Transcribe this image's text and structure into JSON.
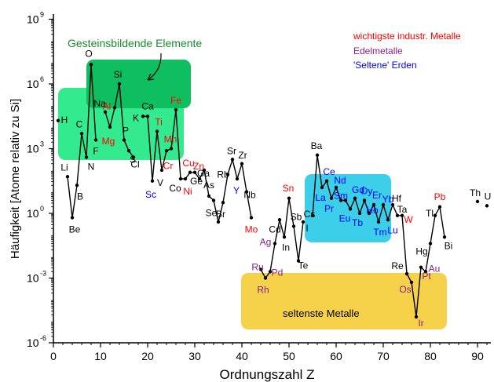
{
  "chart_data": {
    "type": "line",
    "title": "",
    "xlabel": "Ordnungszahl Z",
    "ylabel": "Häufigkeit [Atome relativ zu Si]",
    "xlim": [
      0,
      93
    ],
    "ylog_exponent_range": [
      -6,
      9
    ],
    "x_ticks": [
      "0",
      "10",
      "20",
      "30",
      "40",
      "50",
      "60",
      "70",
      "80",
      "90"
    ],
    "y_ticks": [
      {
        "base": "10",
        "exp": "-6",
        "e": -6
      },
      {
        "base": "10",
        "exp": "-3",
        "e": -3
      },
      {
        "base": "10",
        "exp": "0",
        "e": 0
      },
      {
        "base": "10",
        "exp": "3",
        "e": 3
      },
      {
        "base": "10",
        "exp": "6",
        "e": 6
      },
      {
        "base": "10",
        "exp": "9",
        "e": 9
      }
    ],
    "series": [
      {
        "values_log10": [
          [
            1,
            4.3
          ],
          [
            3,
            1.7
          ],
          [
            4,
            -0.2
          ],
          [
            5,
            1.3
          ],
          [
            6,
            3.7
          ],
          [
            7,
            2.6
          ],
          [
            8,
            6.9
          ],
          [
            9,
            3.4
          ],
          [
            11,
            4.7
          ],
          [
            12,
            4.0
          ],
          [
            13,
            4.9
          ],
          [
            14,
            6.0
          ],
          [
            15,
            3.4
          ],
          [
            16,
            2.9
          ],
          [
            17,
            2.6
          ],
          [
            19,
            4.5
          ],
          [
            20,
            4.5
          ],
          [
            21,
            1.5
          ],
          [
            22,
            3.8
          ],
          [
            23,
            2.0
          ],
          [
            24,
            2.9
          ],
          [
            25,
            3.0
          ],
          [
            26,
            4.8
          ],
          [
            27,
            1.6
          ],
          [
            28,
            1.6
          ],
          [
            29,
            1.9
          ],
          [
            30,
            1.9
          ],
          [
            31,
            1.6
          ],
          [
            32,
            2.0
          ],
          [
            33,
            0.8
          ],
          [
            34,
            0.6
          ],
          [
            35,
            -0.4
          ],
          [
            36,
            0.5
          ],
          [
            37,
            1.8
          ],
          [
            38,
            2.5
          ],
          [
            39,
            1.6
          ],
          [
            40,
            2.3
          ],
          [
            41,
            1.0
          ],
          [
            42,
            -0.2
          ],
          [
            44,
            -2.6
          ],
          [
            45,
            -3.0
          ],
          [
            46,
            -2.7
          ],
          [
            47,
            -1.4
          ],
          [
            48,
            -0.3
          ],
          [
            49,
            -1.1
          ],
          [
            50,
            0.7
          ],
          [
            51,
            -0.6
          ],
          [
            52,
            -2.2
          ],
          [
            53,
            -0.4
          ],
          [
            55,
            -0.1
          ],
          [
            56,
            2.7
          ],
          [
            57,
            1.2
          ],
          [
            58,
            1.5
          ],
          [
            59,
            0.7
          ],
          [
            60,
            1.2
          ],
          [
            61,
            0.6
          ],
          [
            62,
            0.6
          ],
          [
            63,
            0.2
          ],
          [
            64,
            0.7
          ],
          [
            65,
            0.0
          ],
          [
            66,
            0.6
          ],
          [
            67,
            0.0
          ],
          [
            68,
            0.4
          ],
          [
            69,
            -0.4
          ],
          [
            70,
            0.4
          ],
          [
            71,
            -0.3
          ],
          [
            72,
            0.4
          ],
          [
            73,
            -0.1
          ],
          [
            74,
            -0.1
          ],
          [
            75,
            -2.8
          ],
          [
            76,
            -3.2
          ],
          [
            77,
            -4.8
          ],
          [
            78,
            -2.5
          ],
          [
            79,
            -2.7
          ],
          [
            80,
            -1.4
          ],
          [
            81,
            -0.1
          ],
          [
            82,
            0.3
          ],
          [
            83,
            -1.1
          ]
        ]
      }
    ],
    "isolated_points_log10": [
      [
        90,
        0.55
      ],
      [
        92,
        0.35
      ]
    ],
    "element_labels": [
      {
        "s": "H",
        "z": 1,
        "dx": 8,
        "dy": -1,
        "c": "black"
      },
      {
        "s": "Li",
        "z": 3,
        "dx": -4,
        "dy": -12,
        "c": "black"
      },
      {
        "s": "Be",
        "z": 4,
        "dx": 3,
        "dy": 15,
        "c": "black"
      },
      {
        "s": "B",
        "z": 5,
        "dx": 4,
        "dy": 14,
        "c": "black"
      },
      {
        "s": "C",
        "z": 6,
        "dx": -3,
        "dy": -12,
        "c": "black"
      },
      {
        "s": "N",
        "z": 7,
        "dx": 6,
        "dy": 12,
        "c": "black"
      },
      {
        "s": "O",
        "z": 8,
        "dx": -3,
        "dy": -14,
        "c": "black"
      },
      {
        "s": "F",
        "z": 9,
        "dx": 0,
        "dy": 14,
        "c": "black"
      },
      {
        "s": "Na",
        "z": 11,
        "dx": -7,
        "dy": -11,
        "c": "black"
      },
      {
        "s": "Mg",
        "z": 12,
        "dx": -2,
        "dy": 18,
        "c": "red"
      },
      {
        "s": "Al",
        "z": 13,
        "dx": -10,
        "dy": -2,
        "c": "red"
      },
      {
        "s": "Si",
        "z": 14,
        "dx": -2,
        "dy": -12,
        "c": "black"
      },
      {
        "s": "P",
        "z": 15,
        "dx": 2,
        "dy": -12,
        "c": "black"
      },
      {
        "s": "S",
        "z": 16,
        "dx": 5,
        "dy": 11,
        "c": "black"
      },
      {
        "s": "Cl",
        "z": 17,
        "dx": 2,
        "dy": 9,
        "c": "black"
      },
      {
        "s": "K",
        "z": 19,
        "dx": -9,
        "dy": 2,
        "c": "black"
      },
      {
        "s": "Ca",
        "z": 20,
        "dx": 0,
        "dy": -13,
        "c": "black"
      },
      {
        "s": "Sc",
        "z": 21,
        "dx": -2,
        "dy": 17,
        "c": "blue"
      },
      {
        "s": "Ti",
        "z": 22,
        "dx": 2,
        "dy": -12,
        "c": "red"
      },
      {
        "s": "V",
        "z": 23,
        "dx": -2,
        "dy": 16,
        "c": "black"
      },
      {
        "s": "Cr",
        "z": 24,
        "dx": 2,
        "dy": 19,
        "c": "red"
      },
      {
        "s": "Mn",
        "z": 25,
        "dx": -1,
        "dy": -12,
        "c": "red"
      },
      {
        "s": "Fe",
        "z": 26,
        "dx": 0,
        "dy": -12,
        "c": "red"
      },
      {
        "s": "Co",
        "z": 27,
        "dx": -7,
        "dy": 12,
        "c": "black"
      },
      {
        "s": "Ni",
        "z": 28,
        "dx": 3,
        "dy": 16,
        "c": "red"
      },
      {
        "s": "Cu",
        "z": 29,
        "dx": -2,
        "dy": -12,
        "c": "red"
      },
      {
        "s": "Zn",
        "z": 30,
        "dx": 5,
        "dy": -8,
        "c": "red"
      },
      {
        "s": "Ga",
        "z": 31,
        "dx": 5,
        "dy": -7,
        "c": "black"
      },
      {
        "s": "Ge",
        "z": 32,
        "dx": -10,
        "dy": 14,
        "c": "black"
      },
      {
        "s": "As",
        "z": 33,
        "dx": 0,
        "dy": -14,
        "c": "black"
      },
      {
        "s": "Se",
        "z": 34,
        "dx": -3,
        "dy": 16,
        "c": "black"
      },
      {
        "s": "Br",
        "z": 35,
        "dx": 3,
        "dy": -10,
        "c": "black"
      },
      {
        "s": "Rb",
        "z": 37,
        "dx": -6,
        "dy": 0,
        "c": "black"
      },
      {
        "s": "Sr",
        "z": 38,
        "dx": -1,
        "dy": -11,
        "c": "black"
      },
      {
        "s": "Y",
        "z": 39,
        "dx": -1,
        "dy": 15,
        "c": "blue"
      },
      {
        "s": "Zr",
        "z": 40,
        "dx": 1,
        "dy": -11,
        "c": "black"
      },
      {
        "s": "Nb",
        "z": 41,
        "dx": 4,
        "dy": 4,
        "c": "black"
      },
      {
        "s": "Mo",
        "z": 42,
        "dx": 0,
        "dy": 15,
        "c": "red"
      },
      {
        "s": "Ru",
        "z": 44,
        "dx": -4,
        "dy": -3,
        "c": "#8b1d8b"
      },
      {
        "s": "Rh",
        "z": 45,
        "dx": -3,
        "dy": 15,
        "c": "#8b1d8b"
      },
      {
        "s": "Pd",
        "z": 46,
        "dx": 9,
        "dy": 1,
        "c": "#8b1d8b"
      },
      {
        "s": "Ag",
        "z": 47,
        "dx": -12,
        "dy": -2,
        "c": "#8b1d8b"
      },
      {
        "s": "Cd",
        "z": 48,
        "dx": -6,
        "dy": 12,
        "c": "black"
      },
      {
        "s": "In",
        "z": 49,
        "dx": 2,
        "dy": 13,
        "c": "black"
      },
      {
        "s": "Sn",
        "z": 50,
        "dx": -1,
        "dy": -13,
        "c": "red"
      },
      {
        "s": "Sb",
        "z": 51,
        "dx": 3,
        "dy": -12,
        "c": "black"
      },
      {
        "s": "Te",
        "z": 52,
        "dx": 6,
        "dy": 6,
        "c": "black"
      },
      {
        "s": "I",
        "z": 53,
        "dx": 5,
        "dy": 8,
        "c": "black"
      },
      {
        "s": "Cs",
        "z": 55,
        "dx": -4,
        "dy": -2,
        "c": "black"
      },
      {
        "s": "Ba",
        "z": 56,
        "dx": -1,
        "dy": -12,
        "c": "black"
      },
      {
        "s": "La",
        "z": 57,
        "dx": -2,
        "dy": 13,
        "c": "blue"
      },
      {
        "s": "Ce",
        "z": 58,
        "dx": 3,
        "dy": -12,
        "c": "blue"
      },
      {
        "s": "Pr",
        "z": 59,
        "dx": -3,
        "dy": 13,
        "c": "blue"
      },
      {
        "s": "Nd",
        "z": 60,
        "dx": 5,
        "dy": -9,
        "c": "blue"
      },
      {
        "s": "Sm",
        "z": 62,
        "dx": -6,
        "dy": -6,
        "c": "blue"
      },
      {
        "s": "Eu",
        "z": 63,
        "dx": -7,
        "dy": 12,
        "c": "blue"
      },
      {
        "s": "Gd",
        "z": 64,
        "dx": 4,
        "dy": -11,
        "c": "blue"
      },
      {
        "s": "Tb",
        "z": 65,
        "dx": -3,
        "dy": 12,
        "c": "blue"
      },
      {
        "s": "Dy",
        "z": 66,
        "dx": 3,
        "dy": -12,
        "c": "blue"
      },
      {
        "s": "Ho",
        "z": 67,
        "dx": 4,
        "dy": -4,
        "c": "blue"
      },
      {
        "s": "Er",
        "z": 68,
        "dx": 4,
        "dy": -12,
        "c": "blue"
      },
      {
        "s": "Tm",
        "z": 69,
        "dx": 2,
        "dy": 13,
        "c": "blue"
      },
      {
        "s": "Yb",
        "z": 70,
        "dx": 6,
        "dy": -7,
        "c": "blue"
      },
      {
        "s": "Lu",
        "z": 71,
        "dx": 6,
        "dy": 13,
        "c": "blue"
      },
      {
        "s": "Hf",
        "z": 72,
        "dx": 5,
        "dy": -8,
        "c": "black"
      },
      {
        "s": "Ta",
        "z": 73,
        "dx": 6,
        "dy": -8,
        "c": "black"
      },
      {
        "s": "W",
        "z": 74,
        "dx": 8,
        "dy": 5,
        "c": "red"
      },
      {
        "s": "Re",
        "z": 75,
        "dx": -12,
        "dy": -10,
        "c": "black"
      },
      {
        "s": "Os",
        "z": 76,
        "dx": -8,
        "dy": 9,
        "c": "#8b1d8b"
      },
      {
        "s": "Ir",
        "z": 77,
        "dx": 6,
        "dy": 8,
        "c": "#8b1d8b"
      },
      {
        "s": "Pt",
        "z": 78,
        "dx": 7,
        "dy": 11,
        "c": "#8b1d8b"
      },
      {
        "s": "Au",
        "z": 79,
        "dx": 11,
        "dy": -4,
        "c": "#8b1d8b"
      },
      {
        "s": "Hg",
        "z": 80,
        "dx": -11,
        "dy": 10,
        "c": "black"
      },
      {
        "s": "Tl",
        "z": 81,
        "dx": -7,
        "dy": -3,
        "c": "black"
      },
      {
        "s": "Pb",
        "z": 82,
        "dx": 0,
        "dy": -13,
        "c": "red"
      },
      {
        "s": "Bi",
        "z": 83,
        "dx": 5,
        "dy": 11,
        "c": "black"
      },
      {
        "s": "Th",
        "z": 90,
        "dx": -3,
        "dy": -11,
        "c": "black"
      },
      {
        "s": "U",
        "z": 92,
        "dx": 1,
        "dy": -12,
        "c": "black"
      }
    ],
    "annotations": {
      "rock_forming": "Gesteinsbildende Elemente",
      "rarest_metals": "seltenste Metalle"
    },
    "legend": {
      "position": "top-right",
      "entries": [
        {
          "text": "wichtigste industr. Metalle",
          "color": "red"
        },
        {
          "text": "Edelmetalle",
          "color": "#8b1d8b"
        },
        {
          "text": "'Seltene' Erden",
          "color": "blue"
        }
      ]
    },
    "colors": {
      "rock_region_dark": "#0fbf5f",
      "rock_region_light": "#33ea8e",
      "rare_earth_region": "#3dcfea",
      "rarest_metals_region": "#f6d24a"
    }
  }
}
